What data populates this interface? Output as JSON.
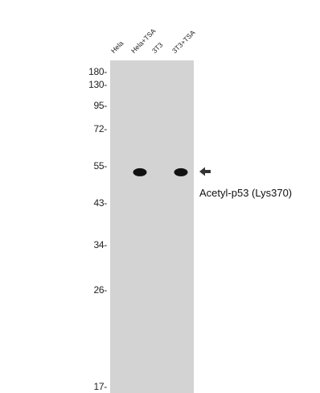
{
  "lanes": [
    {
      "label": "Hela",
      "band_intensity": 0
    },
    {
      "label": "Hela+TSA",
      "band_intensity": 1
    },
    {
      "label": "3T3",
      "band_intensity": 0
    },
    {
      "label": "3T3+TSA",
      "band_intensity": 1
    }
  ],
  "markers": [
    {
      "label": "180-",
      "kda": 180
    },
    {
      "label": "130-",
      "kda": 130
    },
    {
      "label": "95-",
      "kda": 95
    },
    {
      "label": "72-",
      "kda": 72
    },
    {
      "label": "55-",
      "kda": 55
    },
    {
      "label": "43-",
      "kda": 43
    },
    {
      "label": "34-",
      "kda": 34
    },
    {
      "label": "26-",
      "kda": 26
    },
    {
      "label": "17-",
      "kda": 17
    }
  ],
  "band_kda": 53,
  "target_label": "Acetyl-p53 (Lys370)",
  "arrow_icon": "left-arrow-icon",
  "colors": {
    "membrane": "#d3d3d3",
    "band": "#111111",
    "background": "#ffffff"
  }
}
